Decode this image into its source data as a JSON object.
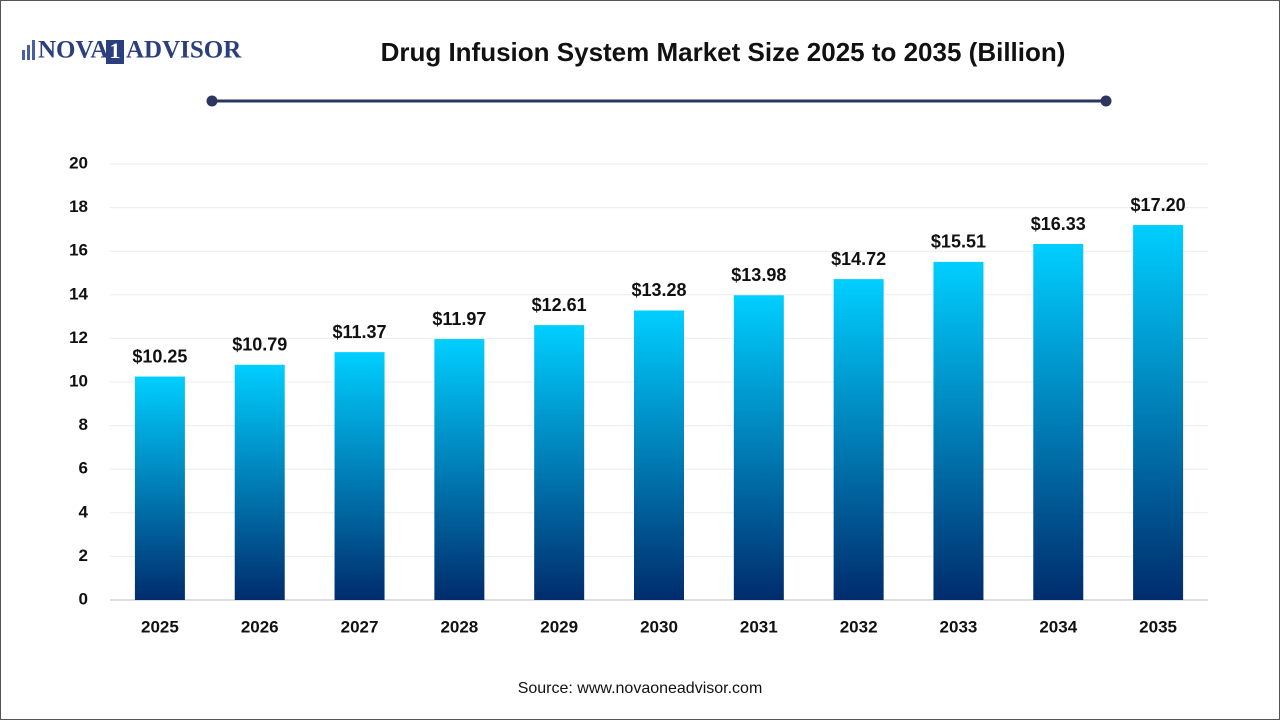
{
  "logo": {
    "left": "NOVA",
    "mark": "1",
    "right": "ADVISOR"
  },
  "chart_data": {
    "type": "bar",
    "title": "Drug Infusion System Market Size 2025 to 2035 (Billion)",
    "source": "Source: www.novaoneadvisor.com",
    "categories": [
      "2025",
      "2026",
      "2027",
      "2028",
      "2029",
      "2030",
      "2031",
      "2032",
      "2033",
      "2034",
      "2035"
    ],
    "values": [
      10.25,
      10.79,
      11.37,
      11.97,
      12.61,
      13.28,
      13.98,
      14.72,
      15.51,
      16.33,
      17.2
    ],
    "value_labels": [
      "$10.25",
      "$10.79",
      "$11.37",
      "$11.97",
      "$12.61",
      "$13.28",
      "$13.98",
      "$14.72",
      "$15.51",
      "$16.33",
      "$17.20"
    ],
    "gradient": [
      "#00cfff",
      "#002c6c"
    ],
    "ylim": [
      0,
      20
    ],
    "yticks": [
      0,
      2,
      4,
      6,
      8,
      10,
      12,
      14,
      16,
      18,
      20
    ],
    "grid": true
  }
}
